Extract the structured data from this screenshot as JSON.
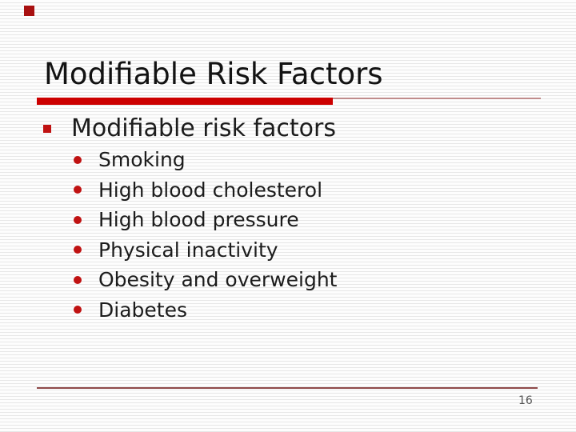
{
  "slide": {
    "title": "Modifiable Risk Factors",
    "list": {
      "level1": "Modifiable risk factors",
      "level2": [
        "Smoking",
        "High blood cholesterol",
        "High blood pressure",
        "Physical inactivity",
        "Obesity and overweight",
        "Diabetes"
      ]
    },
    "footer": {
      "page_number": "16"
    },
    "icons": {
      "corner_accent": "corner-accent-square-icon",
      "level1_bullet": "square-bullet-icon",
      "level2_bullet": "round-bullet-icon"
    },
    "colors": {
      "accent_red": "#cc0000",
      "bullet_red": "#c01212",
      "corner_square": "#a81010",
      "underline_thin": "#c08c8c",
      "footer_line": "#8f4a4a",
      "title_text": "#121212",
      "body_text": "#1c1c1c",
      "page_number": "#555555",
      "stripe_line": "#e7e7e7",
      "background": "#fdfdfd"
    }
  }
}
